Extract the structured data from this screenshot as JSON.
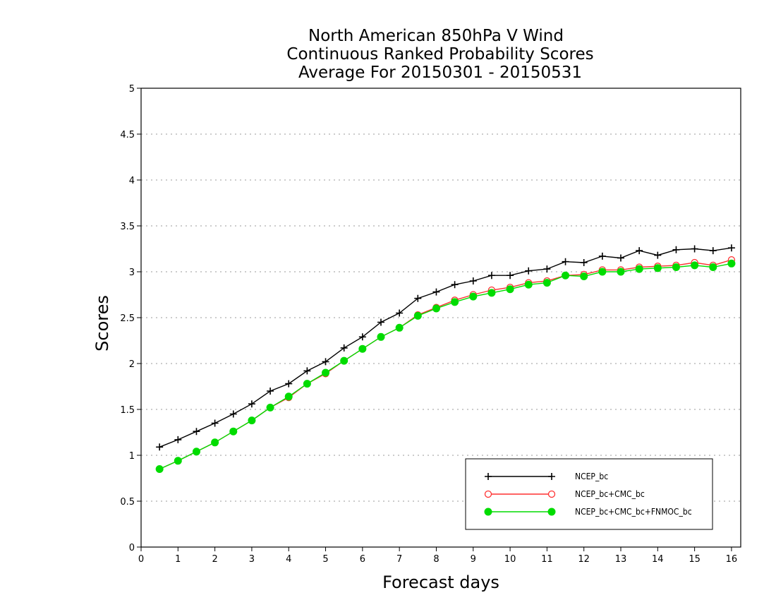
{
  "chart_data": {
    "type": "line",
    "title": [
      "North American 850hPa V Wind",
      "Continuous Ranked Probability Scores",
      "Average For 20150301 - 20150531"
    ],
    "xlabel": "Forecast days",
    "ylabel": "Scores",
    "xlim": [
      0,
      16.25
    ],
    "ylim": [
      0,
      5
    ],
    "xticks": [
      0,
      1,
      2,
      3,
      4,
      5,
      6,
      7,
      8,
      9,
      10,
      11,
      12,
      13,
      14,
      15,
      16
    ],
    "yticks": [
      0,
      0.5,
      1,
      1.5,
      2,
      2.5,
      3,
      3.5,
      4,
      4.5,
      5
    ],
    "ytick_labels": [
      "0",
      "0.5",
      "1",
      "1.5",
      "2",
      "2.5",
      "3",
      "3.5",
      "4",
      "4.5",
      "5"
    ],
    "grid": "horizontal dotted",
    "legend_position": "bottom-right",
    "x": [
      0.5,
      1,
      1.5,
      2,
      2.5,
      3,
      3.5,
      4,
      4.5,
      5,
      5.5,
      6,
      6.5,
      7,
      7.5,
      8,
      8.5,
      9,
      9.5,
      10,
      10.5,
      11,
      11.5,
      12,
      12.5,
      13,
      13.5,
      14,
      14.5,
      15,
      15.5,
      16
    ],
    "series": [
      {
        "name": "NCEP_bc",
        "color": "#000000",
        "marker": "plus",
        "values": [
          1.09,
          1.17,
          1.26,
          1.35,
          1.45,
          1.56,
          1.7,
          1.78,
          1.92,
          2.02,
          2.17,
          2.29,
          2.45,
          2.55,
          2.71,
          2.78,
          2.86,
          2.9,
          2.96,
          2.96,
          3.01,
          3.03,
          3.11,
          3.1,
          3.17,
          3.15,
          3.23,
          3.18,
          3.24,
          3.25,
          3.23,
          3.26
        ]
      },
      {
        "name": "NCEP_bc+CMC_bc",
        "color": "#ff3030",
        "marker": "open-circle",
        "values": [
          0.85,
          0.94,
          1.04,
          1.14,
          1.26,
          1.38,
          1.52,
          1.63,
          1.78,
          1.89,
          2.03,
          2.16,
          2.29,
          2.39,
          2.53,
          2.61,
          2.69,
          2.75,
          2.8,
          2.83,
          2.88,
          2.9,
          2.96,
          2.97,
          3.02,
          3.02,
          3.05,
          3.06,
          3.07,
          3.1,
          3.07,
          3.13
        ]
      },
      {
        "name": "NCEP_bc+CMC_bc+FNMOC_bc",
        "color": "#00dc00",
        "marker": "filled-circle",
        "values": [
          0.85,
          0.94,
          1.04,
          1.14,
          1.26,
          1.38,
          1.52,
          1.64,
          1.78,
          1.9,
          2.03,
          2.16,
          2.29,
          2.39,
          2.52,
          2.6,
          2.67,
          2.73,
          2.77,
          2.81,
          2.86,
          2.88,
          2.96,
          2.95,
          3.0,
          3.0,
          3.03,
          3.04,
          3.05,
          3.07,
          3.05,
          3.09
        ]
      }
    ]
  }
}
